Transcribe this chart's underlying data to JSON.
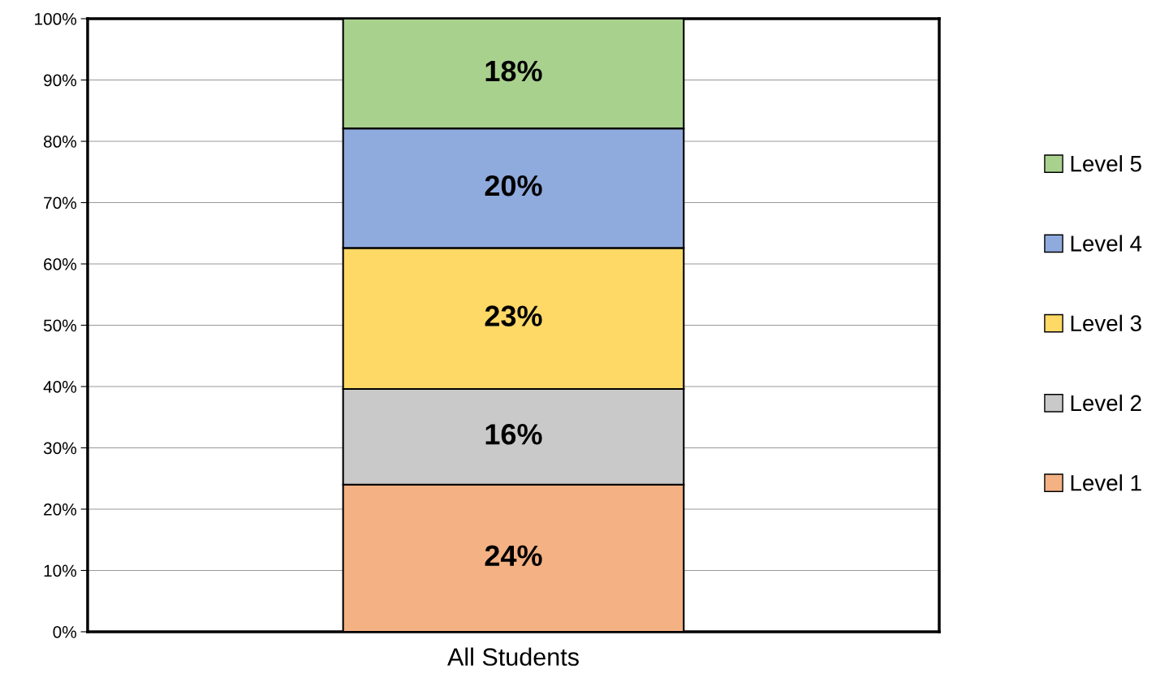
{
  "chart_data": {
    "type": "bar",
    "stacked": true,
    "categories": [
      "All Students"
    ],
    "series": [
      {
        "name": "Level 1",
        "color": "#f4b183",
        "values": [
          24.0
        ],
        "value_labels": [
          "24%"
        ]
      },
      {
        "name": "Level 2",
        "color": "#c9c9c9",
        "values": [
          15.6
        ],
        "value_labels": [
          "16%"
        ]
      },
      {
        "name": "Level 3",
        "color": "#ffd966",
        "values": [
          23.0
        ],
        "value_labels": [
          "23%"
        ]
      },
      {
        "name": "Level 4",
        "color": "#8faadc",
        "values": [
          19.5
        ],
        "value_labels": [
          "20%"
        ]
      },
      {
        "name": "Level 5",
        "color": "#a9d18e",
        "values": [
          17.9
        ],
        "value_labels": [
          "18%"
        ]
      }
    ],
    "ylim": [
      0,
      100
    ],
    "yticks": [
      {
        "value": 0,
        "label": "0%"
      },
      {
        "value": 10,
        "label": "10%"
      },
      {
        "value": 20,
        "label": "20%"
      },
      {
        "value": 30,
        "label": "30%"
      },
      {
        "value": 40,
        "label": "40%"
      },
      {
        "value": 50,
        "label": "50%"
      },
      {
        "value": 60,
        "label": "60%"
      },
      {
        "value": 70,
        "label": "70%"
      },
      {
        "value": 80,
        "label": "80%"
      },
      {
        "value": 90,
        "label": "90%"
      },
      {
        "value": 100,
        "label": "100%"
      }
    ],
    "grid": "y",
    "legend": "right"
  }
}
